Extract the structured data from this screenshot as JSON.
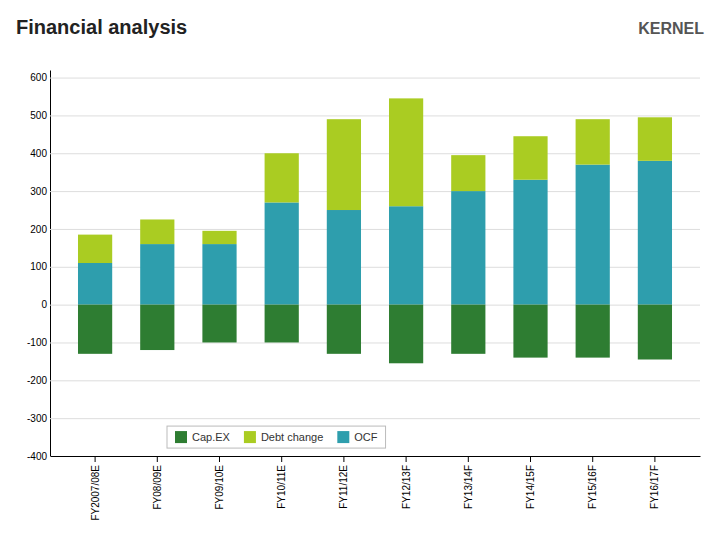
{
  "chart_data": {
    "type": "bar",
    "title": "Financial analysis",
    "annotations": [
      {
        "text": "KERNEL"
      }
    ],
    "categories": [
      "FY2007/08E",
      "FY08/09E",
      "FY09/10E",
      "FY10/11E",
      "FY11/12E",
      "FY12/13F",
      "FY13/14F",
      "FY14/15F",
      "FY15/16F",
      "FY16/17F"
    ],
    "series": [
      {
        "name": "OCF",
        "color": "#2E9EAD",
        "values": [
          110,
          160,
          160,
          270,
          250,
          260,
          300,
          330,
          370,
          380
        ]
      },
      {
        "name": "Debt change",
        "color": "#AACC22",
        "values": [
          75,
          65,
          35,
          130,
          240,
          285,
          95,
          115,
          120,
          115
        ]
      },
      {
        "name": "Cap.EX",
        "color": "#2E7D32",
        "values": [
          -130,
          -120,
          -100,
          -100,
          -130,
          -155,
          -130,
          -140,
          -140,
          -145
        ]
      }
    ],
    "stacked": true,
    "ylim": [
      -400,
      620
    ],
    "yticks": [
      -400,
      -300,
      -200,
      -100,
      0,
      100,
      200,
      300,
      400,
      500,
      600
    ],
    "grid": true,
    "legend": "lower left"
  }
}
